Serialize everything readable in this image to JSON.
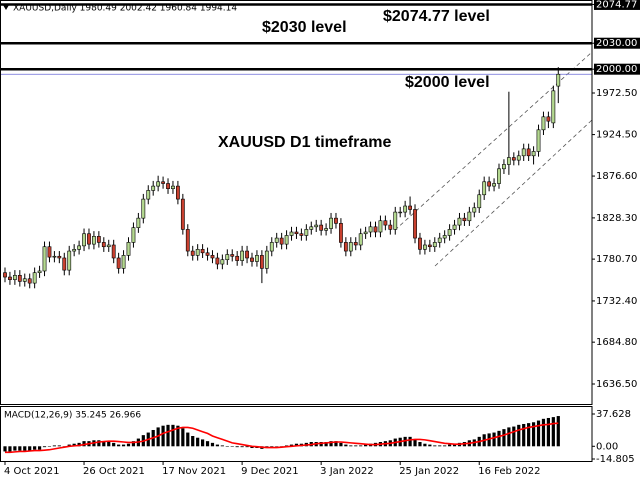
{
  "chart_data": {
    "type": "candlestick",
    "title": "XAUUSD,Daily  1980.49 2002.42 1960.84 1994.14",
    "categories": [
      "4 Oct 2021",
      null,
      null,
      null,
      null,
      null,
      null,
      null,
      null,
      null,
      null,
      null,
      null,
      null,
      null,
      null,
      "26 Oct 2021",
      null,
      null,
      null,
      null,
      null,
      null,
      null,
      null,
      null,
      null,
      null,
      null,
      null,
      null,
      null,
      "17 Nov 2021",
      null,
      null,
      null,
      null,
      null,
      null,
      null,
      null,
      null,
      null,
      null,
      null,
      null,
      null,
      null,
      "9 Dec 2021",
      null,
      null,
      null,
      null,
      null,
      null,
      null,
      null,
      null,
      null,
      null,
      null,
      null,
      null,
      null,
      "3 Jan 2022",
      null,
      null,
      null,
      null,
      null,
      null,
      null,
      null,
      null,
      null,
      null,
      null,
      null,
      null,
      null,
      "25 Jan 2022",
      null,
      null,
      null,
      null,
      null,
      null,
      null,
      null,
      null,
      null,
      null,
      null,
      null,
      null,
      null,
      "16 Feb 2022",
      null,
      null,
      null,
      null,
      null,
      null,
      null,
      null,
      null,
      null,
      null,
      null,
      null,
      null,
      null,
      null
    ],
    "open": [
      1765,
      1760,
      1757,
      1762,
      1755,
      1758,
      1753,
      1765,
      1767,
      1795,
      1783,
      1784,
      1782,
      1768,
      1790,
      1792,
      1796,
      1810,
      1798,
      1807,
      1800,
      1795,
      1797,
      1782,
      1770,
      1785,
      1800,
      1817,
      1828,
      1850,
      1860,
      1865,
      1870,
      1868,
      1862,
      1865,
      1850,
      1815,
      1790,
      1785,
      1792,
      1788,
      1785,
      1782,
      1775,
      1780,
      1786,
      1784,
      1779,
      1790,
      1782,
      1778,
      1785,
      1770,
      1790,
      1800,
      1805,
      1798,
      1808,
      1812,
      1810,
      1808,
      1815,
      1818,
      1820,
      1814,
      1816,
      1828,
      1822,
      1800,
      1790,
      1800,
      1797,
      1810,
      1812,
      1818,
      1812,
      1825,
      1820,
      1815,
      1835,
      1835,
      1842,
      1838,
      1805,
      1792,
      1797,
      1795,
      1800,
      1805,
      1808,
      1815,
      1820,
      1828,
      1825,
      1835,
      1840,
      1855,
      1870,
      1865,
      1868,
      1885,
      1890,
      1898,
      1895,
      1900,
      1908,
      1900,
      1905,
      1930,
      1945,
      1938,
      1980.49
    ],
    "high": [
      1771,
      1766,
      1768,
      1768,
      1764,
      1764,
      1771,
      1773,
      1801,
      1801,
      1790,
      1790,
      1788,
      1796,
      1798,
      1802,
      1816,
      1816,
      1813,
      1813,
      1806,
      1803,
      1803,
      1788,
      1791,
      1806,
      1823,
      1834,
      1856,
      1866,
      1871,
      1877,
      1876,
      1874,
      1871,
      1871,
      1856,
      1821,
      1796,
      1798,
      1798,
      1794,
      1791,
      1788,
      1786,
      1792,
      1792,
      1790,
      1796,
      1796,
      1788,
      1791,
      1791,
      1796,
      1806,
      1811,
      1811,
      1814,
      1818,
      1818,
      1816,
      1821,
      1824,
      1826,
      1826,
      1822,
      1834,
      1834,
      1828,
      1806,
      1806,
      1806,
      1816,
      1818,
      1824,
      1824,
      1831,
      1831,
      1826,
      1841,
      1841,
      1848,
      1853,
      1844,
      1811,
      1803,
      1803,
      1806,
      1811,
      1814,
      1821,
      1826,
      1834,
      1834,
      1841,
      1846,
      1861,
      1876,
      1876,
      1874,
      1891,
      1896,
      1974,
      1904,
      1906,
      1914,
      1914,
      1911,
      1936,
      1951,
      1951,
      1981,
      2002.42
    ],
    "low": [
      1754,
      1751,
      1751,
      1749,
      1749,
      1747,
      1747,
      1759,
      1761,
      1777,
      1777,
      1776,
      1762,
      1762,
      1784,
      1786,
      1790,
      1792,
      1792,
      1794,
      1789,
      1789,
      1776,
      1764,
      1764,
      1779,
      1794,
      1811,
      1822,
      1844,
      1854,
      1859,
      1862,
      1856,
      1856,
      1844,
      1809,
      1784,
      1779,
      1779,
      1782,
      1779,
      1776,
      1769,
      1769,
      1774,
      1778,
      1773,
      1773,
      1776,
      1772,
      1772,
      1753,
      1764,
      1784,
      1794,
      1792,
      1792,
      1802,
      1804,
      1802,
      1802,
      1809,
      1812,
      1808,
      1808,
      1810,
      1816,
      1794,
      1784,
      1784,
      1791,
      1791,
      1804,
      1806,
      1806,
      1806,
      1814,
      1809,
      1809,
      1829,
      1829,
      1832,
      1799,
      1786,
      1786,
      1789,
      1789,
      1794,
      1799,
      1802,
      1809,
      1814,
      1819,
      1819,
      1829,
      1834,
      1849,
      1859,
      1859,
      1862,
      1879,
      1878,
      1889,
      1889,
      1894,
      1894,
      1890,
      1899,
      1924,
      1932,
      1932,
      1960.84
    ],
    "close": [
      1760,
      1757,
      1762,
      1755,
      1758,
      1753,
      1765,
      1767,
      1795,
      1783,
      1784,
      1782,
      1768,
      1790,
      1792,
      1796,
      1810,
      1798,
      1807,
      1800,
      1795,
      1797,
      1782,
      1770,
      1785,
      1800,
      1817,
      1828,
      1850,
      1860,
      1865,
      1870,
      1868,
      1862,
      1865,
      1850,
      1815,
      1790,
      1785,
      1792,
      1788,
      1785,
      1782,
      1775,
      1780,
      1786,
      1784,
      1779,
      1790,
      1782,
      1778,
      1785,
      1770,
      1790,
      1800,
      1805,
      1798,
      1808,
      1812,
      1810,
      1808,
      1815,
      1818,
      1820,
      1814,
      1816,
      1828,
      1822,
      1800,
      1790,
      1800,
      1797,
      1810,
      1812,
      1818,
      1812,
      1825,
      1820,
      1815,
      1835,
      1835,
      1842,
      1838,
      1805,
      1792,
      1797,
      1795,
      1800,
      1805,
      1808,
      1815,
      1820,
      1828,
      1825,
      1835,
      1840,
      1855,
      1870,
      1865,
      1868,
      1885,
      1890,
      1898,
      1895,
      1900,
      1908,
      1900,
      1905,
      1930,
      1945,
      1940,
      1975,
      1994.14
    ],
    "up_color": "#b4d890",
    "down_color": "#c8402f",
    "ylim": [
      1613.4,
      2079.9
    ],
    "yticks": [
      {
        "value": 1972.5,
        "label": "1972.50"
      },
      {
        "value": 1924.5,
        "label": "1924.50"
      },
      {
        "value": 1876.6,
        "label": "1876.60"
      },
      {
        "value": 1828.3,
        "label": "1828.30"
      },
      {
        "value": 1780.7,
        "label": "1780.70"
      },
      {
        "value": 1732.4,
        "label": "1732.40"
      },
      {
        "value": 1684.8,
        "label": "1684.80"
      },
      {
        "value": 1636.5,
        "label": "1636.50"
      }
    ],
    "levels": [
      {
        "value": 2074.77,
        "label": "2074.77"
      },
      {
        "value": 2030,
        "label": "2030.00"
      },
      {
        "value": 2000,
        "label": "2000.00"
      }
    ],
    "annotations": [
      "$2074.77 level",
      "$2030 level",
      "$2000 level",
      "XAUUSD D1 timeframe"
    ],
    "macd": {
      "type": "bar",
      "label": "MACD(12,26,9) 35.245 26.966",
      "color": "#000000",
      "values": [
        -6,
        -6,
        -5,
        -5,
        -5,
        -5,
        -4,
        -4,
        -1,
        0,
        1,
        1,
        0,
        2,
        3,
        4,
        6,
        6,
        7,
        7,
        6,
        6,
        4,
        2,
        2,
        3,
        6,
        9,
        13,
        16,
        19,
        22,
        24,
        25,
        25,
        24,
        21,
        16,
        12,
        10,
        8,
        6,
        4,
        2,
        1,
        0,
        0,
        -1,
        -1,
        -1,
        -2,
        -2,
        -3,
        -2,
        -1,
        0,
        0,
        1,
        2,
        3,
        3,
        4,
        5,
        5,
        5,
        5,
        6,
        6,
        4,
        2,
        1,
        1,
        1,
        2,
        3,
        4,
        5,
        6,
        7,
        9,
        10,
        11,
        11,
        8,
        5,
        3,
        2,
        1,
        1,
        1,
        2,
        3,
        4,
        5,
        7,
        8,
        11,
        14,
        15,
        16,
        18,
        20,
        22,
        23,
        25,
        26,
        27,
        28,
        30,
        32,
        33,
        34,
        35.245
      ],
      "signal": {
        "color": "#ff0000",
        "values": [
          -7,
          -7,
          -6.5,
          -6,
          -6,
          -5.5,
          -5,
          -5,
          -4.5,
          -4,
          -3,
          -2,
          -1,
          0,
          0.5,
          1,
          2,
          3,
          4,
          5,
          5.5,
          6,
          6,
          5.5,
          5,
          4.5,
          4.5,
          5,
          6,
          8,
          10,
          12,
          15,
          17,
          19,
          21,
          22,
          22,
          21,
          19,
          17,
          15,
          12,
          10,
          8,
          6,
          4,
          3,
          2,
          1,
          0,
          -0.5,
          -1,
          -1.5,
          -1.5,
          -1.5,
          -1,
          -0.5,
          0,
          0.5,
          1,
          1.5,
          2,
          3,
          3.5,
          4,
          4.5,
          5,
          5,
          4.5,
          4,
          3.5,
          3,
          2.5,
          2,
          2,
          2.5,
          3,
          3.5,
          4.5,
          5.5,
          6.5,
          7.5,
          8,
          8,
          7.5,
          6.5,
          5.5,
          4.5,
          3.5,
          3,
          2.5,
          2.5,
          3,
          3.5,
          4.5,
          5.5,
          7,
          8.5,
          10,
          11.5,
          13,
          15,
          17,
          19,
          20.5,
          22,
          23,
          24,
          25,
          25.5,
          26.5,
          26.966
        ]
      },
      "ylim": [
        -14.805,
        37.628
      ],
      "yticks": [
        37.628,
        {
          "value": 0,
          "label": "0.00"
        },
        -14.805
      ]
    }
  }
}
